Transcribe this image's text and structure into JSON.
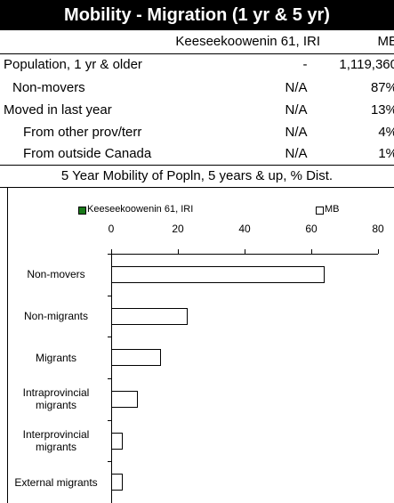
{
  "header": {
    "title": "Mobility - Migration (1 yr & 5 yr)"
  },
  "table": {
    "columns": [
      "Keeseekoowenin 61, IRI",
      "MB"
    ],
    "rows": [
      [
        "Population, 1 yr & older",
        "-",
        "1,119,360"
      ],
      [
        "Non-movers",
        "N/A",
        "87%"
      ],
      [
        "Moved in last year",
        "N/A",
        "13%"
      ],
      [
        "From other prov/terr",
        "N/A",
        "4%"
      ],
      [
        "From outside Canada",
        "N/A",
        "1%"
      ]
    ]
  },
  "chart_data": {
    "type": "bar",
    "orientation": "horizontal",
    "title": "5 Year Mobility of Popln, 5 years & up, % Dist.",
    "categories": [
      "Non-movers",
      "Non-migrants",
      "Migrants",
      "Intraprovincial migrants",
      "Interprovincial migrants",
      "External migrants"
    ],
    "series": [
      {
        "name": "Keeseekoowenin 61, IRI",
        "color": "#1a7a1a",
        "values": [
          null,
          null,
          null,
          null,
          null,
          null
        ]
      },
      {
        "name": "MB",
        "color": "#ffffff",
        "values": [
          64,
          23,
          15,
          8,
          3.5,
          3.5
        ]
      }
    ],
    "xlim": [
      0,
      80
    ],
    "xticks": [
      0,
      20,
      40,
      60,
      80
    ],
    "grid": false
  }
}
